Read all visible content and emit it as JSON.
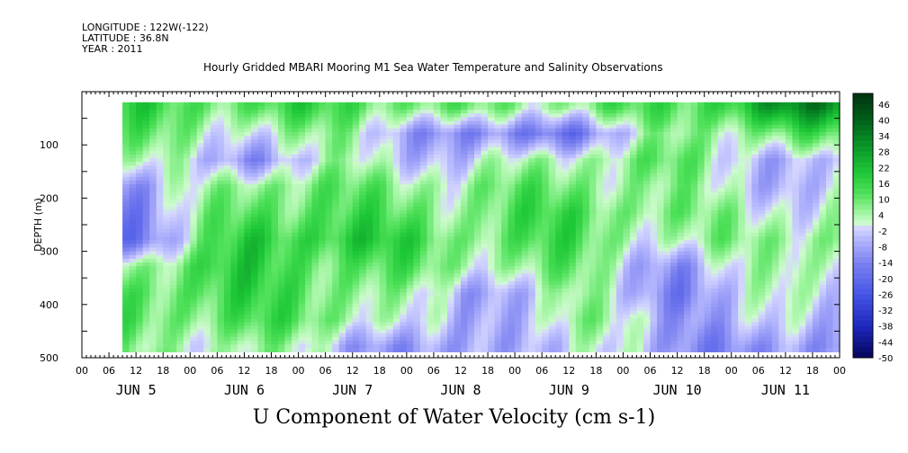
{
  "header": {
    "longitude": "LONGITUDE : 122W(-122)",
    "latitude": "LATITUDE : 36.8N",
    "year": "YEAR : 2011",
    "subtitle": "Hourly Gridded MBARI Mooring M1 Sea Water Temperature and Salinity Observations"
  },
  "chart_data": {
    "type": "heatmap",
    "title": "U Component of Water Velocity (cm s-1)",
    "subtitle": "Hourly Gridded MBARI Mooring M1 Sea Water Temperature and Salinity Observations",
    "ylabel": "DEPTH (m)",
    "xlabel": "",
    "ylim": [
      500,
      0
    ],
    "y_reversed": true,
    "y_ticks": [
      100,
      200,
      300,
      400,
      500
    ],
    "x_range_hours": [
      0,
      168
    ],
    "x_hour_labels": [
      "00",
      "06",
      "12",
      "18",
      "00",
      "06",
      "12",
      "18",
      "00",
      "06",
      "12",
      "18",
      "00",
      "06",
      "12",
      "18",
      "00",
      "06",
      "12",
      "18",
      "00",
      "06",
      "12",
      "18",
      "00",
      "06",
      "12",
      "18",
      "00"
    ],
    "day_labels": [
      "JUN  5",
      "JUN  6",
      "JUN  7",
      "JUN  8",
      "JUN  9",
      "JUN 10",
      "JUN 11"
    ],
    "colorbar": {
      "min": -50,
      "max": 50,
      "step": 2,
      "tick_labels": [
        "46",
        "40",
        "34",
        "28",
        "22",
        "16",
        "10",
        "4",
        "-2",
        "-8",
        "-14",
        "-20",
        "-26",
        "-32",
        "-38",
        "-44",
        "-50"
      ],
      "colors": {
        "strong_pos": "#003a12",
        "pos": "#1fc93a",
        "light_pos": "#b8f7b8",
        "light_neg": "#c8cbff",
        "neg": "#5a60e6",
        "strong_neg": "#0a0a6a"
      }
    },
    "data_coverage": {
      "start_hour": 9,
      "end_hour": 168,
      "top_depth_m": 20,
      "bottom_depth_m": 485
    },
    "field_description_grid": {
      "depths_m": [
        25,
        75,
        125,
        175,
        225,
        275,
        325,
        375,
        425,
        475
      ],
      "times_hr": [
        12,
        36,
        60,
        84,
        108,
        132,
        156
      ],
      "values": [
        [
          14,
          12,
          14,
          6,
          8,
          12,
          30
        ],
        [
          8,
          2,
          4,
          -16,
          -14,
          6,
          10
        ],
        [
          2,
          -8,
          2,
          -4,
          6,
          8,
          -6
        ],
        [
          -10,
          10,
          8,
          6,
          10,
          4,
          -4
        ],
        [
          -12,
          14,
          12,
          8,
          14,
          6,
          2
        ],
        [
          -14,
          18,
          18,
          10,
          12,
          2,
          8
        ],
        [
          8,
          16,
          12,
          6,
          8,
          -10,
          6
        ],
        [
          12,
          14,
          10,
          -8,
          4,
          -12,
          2
        ],
        [
          10,
          12,
          8,
          -10,
          6,
          -8,
          -4
        ],
        [
          4,
          6,
          -6,
          -12,
          2,
          -10,
          -12
        ]
      ]
    }
  }
}
